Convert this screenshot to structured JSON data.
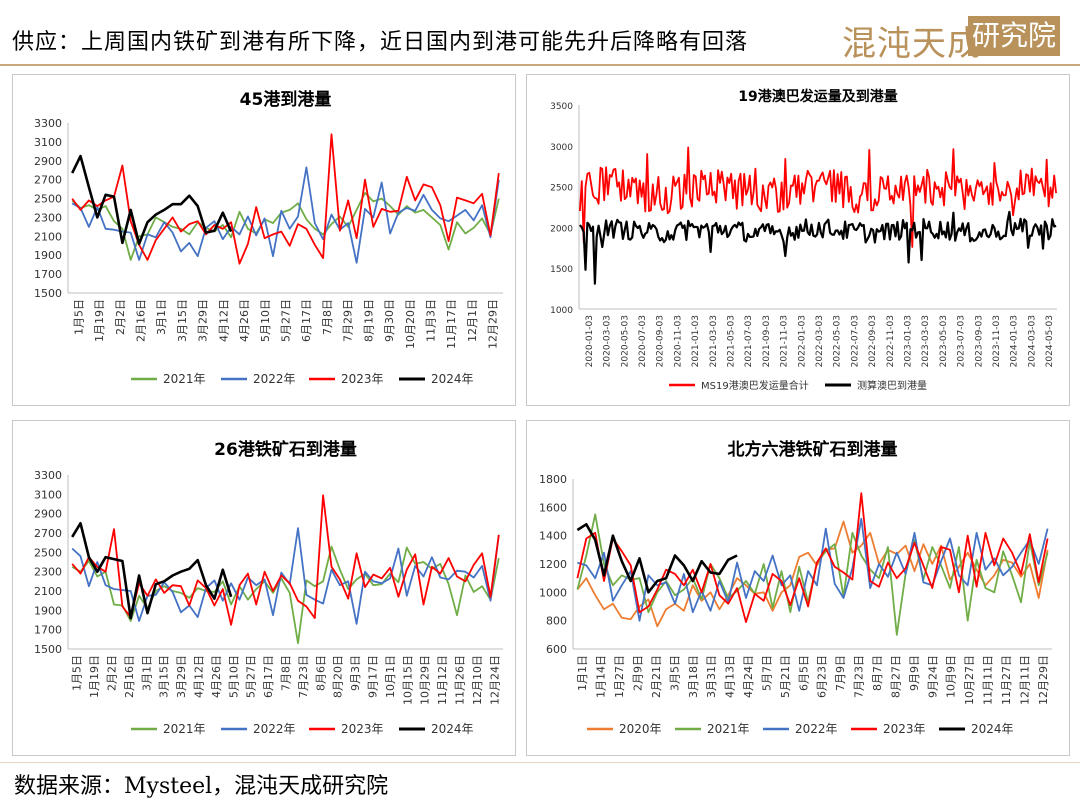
{
  "header": {
    "title": "供应：上周国内铁矿到港有所下降，近日国内到港可能先升后降略有回落",
    "brand": "混沌天成",
    "brand_box": "研究院"
  },
  "footer": {
    "source": "数据来源：Mysteel，混沌天成研究院"
  },
  "colors": {
    "2020": "#ed7d31",
    "2021": "#70ad47",
    "2022": "#4472c4",
    "2023": "#ff0000",
    "2024": "#000000",
    "brand": "#b8925a"
  },
  "chart_data": [
    {
      "type": "line",
      "title": "45港到港量",
      "ylim": [
        1500,
        3300
      ],
      "yticks": [
        "1500",
        "1700",
        "1900",
        "2100",
        "2300",
        "2500",
        "2700",
        "2900",
        "3100",
        "3300"
      ],
      "xticks": [
        "1月5日",
        "1月19日",
        "2月2日",
        "2月16日",
        "3月1日",
        "3月15日",
        "3月29日",
        "4月12日",
        "4月26日",
        "5月10日",
        "5月27日",
        "6月17日",
        "7月8日",
        "7月29日",
        "8月19日",
        "9月30日",
        "10月20日",
        "11月3日",
        "11月17日",
        "12月1日",
        "12月29日"
      ],
      "weeks": 52,
      "legend_position": "bottom",
      "series": [
        {
          "name": "2021年",
          "color": "#70ad47",
          "values": [
            2480,
            2400,
            2430,
            2380,
            2420,
            2260,
            2180,
            1850,
            2100,
            2120,
            2300,
            2250,
            2200,
            2180,
            2120,
            2250,
            2190,
            2150,
            2220,
            2090,
            2360,
            2180,
            2130,
            2280,
            2240,
            2350,
            2380,
            2450,
            2280,
            2180,
            2120,
            2230,
            2310,
            2200,
            2380,
            2560,
            2470,
            2500,
            2420,
            2330,
            2420,
            2350,
            2380,
            2300,
            2220,
            1960,
            2250,
            2130,
            2190,
            2290,
            2120,
            2500
          ]
        },
        {
          "name": "2022年",
          "color": "#4472c4",
          "values": [
            2450,
            2400,
            2200,
            2410,
            2180,
            2170,
            2150,
            2140,
            1850,
            2120,
            2090,
            2250,
            2140,
            1940,
            2030,
            1890,
            2190,
            2260,
            2070,
            2200,
            2120,
            2310,
            2110,
            2290,
            1890,
            2370,
            2180,
            2310,
            2830,
            2240,
            2070,
            2330,
            2170,
            2240,
            1820,
            2390,
            2300,
            2670,
            2130,
            2350,
            2400,
            2370,
            2540,
            2380,
            2290,
            2260,
            2320,
            2380,
            2270,
            2430,
            2090,
            2700
          ]
        },
        {
          "name": "2023年",
          "color": "#ff0000",
          "values": [
            2500,
            2380,
            2480,
            2420,
            2480,
            2520,
            2850,
            2260,
            2010,
            1850,
            2060,
            2180,
            2300,
            2150,
            2230,
            2260,
            2120,
            2220,
            2180,
            2250,
            1810,
            2020,
            2410,
            2080,
            2120,
            2150,
            2000,
            2230,
            2180,
            2010,
            1870,
            3180,
            2160,
            2480,
            2080,
            2700,
            2200,
            2390,
            2360,
            2370,
            2730,
            2480,
            2650,
            2620,
            2430,
            2050,
            2510,
            2480,
            2450,
            2550,
            2110,
            2770
          ]
        },
        {
          "name": "2024年",
          "color": "#000000",
          "values": [
            2770,
            2950,
            2620,
            2300,
            2540,
            2520,
            2030,
            2380,
            2020,
            2250,
            2330,
            2380,
            2440,
            2440,
            2530,
            2420,
            2140,
            2160,
            2350,
            2150
          ]
        }
      ]
    },
    {
      "type": "line",
      "title": "19港澳巴发运量及到港量",
      "ylim": [
        1000,
        3500
      ],
      "yticks": [
        "1000",
        "1500",
        "2000",
        "2500",
        "3000",
        "3500"
      ],
      "xticks": [
        "2020-01-03",
        "2020-03-03",
        "2020-05-03",
        "2020-07-03",
        "2020-09-03",
        "2020-11-03",
        "2021-01-03",
        "2021-03-03",
        "2021-05-03",
        "2021-07-03",
        "2021-09-03",
        "2021-11-03",
        "2022-01-03",
        "2022-03-03",
        "2022-05-03",
        "2022-07-03",
        "2022-09-03",
        "2022-11-03",
        "2023-01-03",
        "2023-03-03",
        "2023-05-03",
        "2023-07-03",
        "2023-09-03",
        "2023-11-03",
        "2024-01-03",
        "2024-03-03",
        "2024-05-03"
      ],
      "legend_position": "bottom",
      "series": [
        {
          "name": "MS19港澳巴发运量合计",
          "color": "#ff0000",
          "pattern": {
            "base": 2450,
            "amp": 230,
            "extremes": [
              [
                0,
                2200
              ],
              [
                2,
                1820
              ],
              [
                30,
                2600
              ],
              [
                36,
                2900
              ],
              [
                58,
                2980
              ],
              [
                94,
                2720
              ],
              [
                110,
                2840
              ],
              [
                155,
                2950
              ],
              [
                178,
                1760
              ],
              [
                200,
                2960
              ],
              [
                222,
                2790
              ],
              [
                232,
                2150
              ],
              [
                250,
                2830
              ],
              [
                255,
                2420
              ]
            ]
          }
        },
        {
          "name": "测算澳巴到港量",
          "color": "#000000",
          "pattern": {
            "base": 1960,
            "amp": 120,
            "extremes": [
              [
                0,
                2030
              ],
              [
                3,
                1480
              ],
              [
                8,
                1310
              ],
              [
                12,
                1760
              ],
              [
                30,
                2020
              ],
              [
                58,
                2080
              ],
              [
                70,
                1700
              ],
              [
                90,
                1920
              ],
              [
                110,
                1650
              ],
              [
                150,
                2050
              ],
              [
                176,
                1570
              ],
              [
                183,
                1600
              ],
              [
                200,
                2180
              ],
              [
                230,
                2190
              ],
              [
                240,
                1750
              ],
              [
                248,
                1740
              ],
              [
                253,
                2100
              ],
              [
                255,
                2020
              ]
            ]
          }
        }
      ]
    },
    {
      "type": "line",
      "title": "26港铁矿石到港量",
      "ylim": [
        1500,
        3300
      ],
      "yticks": [
        "1500",
        "1700",
        "1900",
        "2100",
        "2300",
        "2500",
        "2700",
        "2900",
        "3100",
        "3300"
      ],
      "xticks": [
        "1月5日",
        "1月19日",
        "2月2日",
        "2月16日",
        "3月1日",
        "3月15日",
        "3月29日",
        "4月12日",
        "4月26日",
        "5月10日",
        "5月27日",
        "6月17日",
        "7月8日",
        "7月23日",
        "8月6日",
        "8月20日",
        "9月3日",
        "9月17日",
        "10月1日",
        "10月15日",
        "10月29日",
        "11月12日",
        "11月26日",
        "12月10日",
        "12月24日"
      ],
      "weeks": 52,
      "legend_position": "bottom",
      "series": [
        {
          "name": "2021年",
          "color": "#70ad47",
          "values": [
            2350,
            2300,
            2410,
            2250,
            2300,
            1960,
            1950,
            1790,
            2050,
            1920,
            2100,
            2150,
            2100,
            2080,
            2030,
            2130,
            2100,
            2090,
            2200,
            1960,
            2150,
            2010,
            2120,
            2200,
            2080,
            2230,
            2080,
            1560,
            2210,
            2150,
            2200,
            2560,
            2320,
            2120,
            2220,
            2280,
            2160,
            2170,
            2280,
            2190,
            2550,
            2380,
            2400,
            2330,
            2380,
            2170,
            1850,
            2260,
            2090,
            2150,
            2010,
            2440
          ]
        },
        {
          "name": "2022年",
          "color": "#4472c4",
          "values": [
            2540,
            2460,
            2150,
            2400,
            2160,
            2120,
            2110,
            2100,
            1790,
            2050,
            2060,
            2190,
            2090,
            1880,
            1950,
            1830,
            2130,
            2210,
            2000,
            2180,
            2010,
            2240,
            2160,
            2220,
            1850,
            2290,
            2170,
            2750,
            2060,
            2010,
            1970,
            2320,
            2160,
            2200,
            1760,
            2300,
            2200,
            2180,
            2230,
            2540,
            2050,
            2360,
            2250,
            2450,
            2240,
            2220,
            2310,
            2300,
            2240,
            2360,
            2000,
            2680
          ]
        },
        {
          "name": "2023年",
          "color": "#ff0000",
          "values": [
            2380,
            2280,
            2450,
            2350,
            2300,
            2740,
            1940,
            1830,
            2180,
            2050,
            2220,
            2080,
            2160,
            2150,
            1950,
            2210,
            2130,
            1950,
            2120,
            1750,
            2160,
            2280,
            1960,
            2300,
            2100,
            2260,
            2180,
            2000,
            1940,
            1820,
            3090,
            2350,
            2220,
            2020,
            2490,
            2140,
            2270,
            2230,
            2340,
            2040,
            2320,
            2480,
            1960,
            2350,
            2280,
            2440,
            2250,
            2200,
            2370,
            2490,
            2040,
            2680
          ]
        },
        {
          "name": "2024年",
          "color": "#000000",
          "values": [
            2660,
            2800,
            2450,
            2300,
            2450,
            2430,
            2410,
            1820,
            2260,
            1870,
            2170,
            2200,
            2260,
            2300,
            2330,
            2420,
            2160,
            2020,
            2320,
            2040
          ]
        }
      ]
    },
    {
      "type": "line",
      "title": "北方六港铁矿石到港量",
      "ylim": [
        600,
        1800
      ],
      "yticks": [
        "600",
        "800",
        "1000",
        "1200",
        "1400",
        "1600",
        "1800"
      ],
      "xticks": [
        "1月1日",
        "1月14日",
        "1月27日",
        "2月9日",
        "2月21日",
        "3月5日",
        "3月18日",
        "3月31日",
        "4月13日",
        "4月24日",
        "5月7日",
        "5月21日",
        "6月5日",
        "6月23日",
        "7月9日",
        "7月23日",
        "8月7日",
        "8月27日",
        "9月9日",
        "9月24日",
        "10月9日",
        "10月27日",
        "11月11日",
        "11月27日",
        "12月11日",
        "12月29日"
      ],
      "weeks": 54,
      "legend_position": "bottom",
      "series": [
        {
          "name": "2020年",
          "color": "#ed7d31",
          "values": [
            1020,
            1100,
            980,
            880,
            920,
            820,
            810,
            900,
            950,
            760,
            880,
            920,
            870,
            1050,
            940,
            1000,
            880,
            980,
            1100,
            1050,
            990,
            1000,
            870,
            1000,
            1050,
            1250,
            1280,
            1190,
            1300,
            1310,
            1500,
            1280,
            1330,
            1420,
            1200,
            1300,
            1270,
            1330,
            1150,
            1340,
            1200,
            1330,
            1090,
            1180,
            1280,
            1160,
            1050,
            1120,
            1230,
            1210,
            1110,
            1200,
            960,
            1300
          ]
        },
        {
          "name": "2021年",
          "color": "#70ad47",
          "values": [
            1020,
            1260,
            1550,
            1200,
            1050,
            1120,
            1090,
            1100,
            860,
            1000,
            1080,
            980,
            1020,
            1100,
            950,
            1200,
            1100,
            960,
            1010,
            1080,
            990,
            1200,
            890,
            1150,
            860,
            1180,
            930,
            1210,
            1290,
            1340,
            970,
            1420,
            1260,
            1160,
            1100,
            1320,
            700,
            1130,
            1370,
            1090,
            1320,
            1190,
            1030,
            1320,
            800,
            1230,
            1030,
            1000,
            1290,
            1120,
            930,
            1360,
            1050,
            1280
          ]
        },
        {
          "name": "2022年",
          "color": "#4472c4",
          "values": [
            1210,
            1190,
            1100,
            1280,
            940,
            1050,
            1150,
            800,
            1120,
            1050,
            1070,
            920,
            1130,
            860,
            1010,
            870,
            1080,
            930,
            1210,
            960,
            1150,
            1080,
            1260,
            1050,
            1120,
            870,
            1150,
            1050,
            1450,
            1060,
            960,
            1170,
            1520,
            1030,
            1200,
            1110,
            1280,
            1130,
            1420,
            1070,
            1050,
            1220,
            1380,
            1120,
            1050,
            1420,
            1160,
            1240,
            1120,
            1180,
            1280,
            1370,
            1200,
            1450
          ]
        },
        {
          "name": "2023年",
          "color": "#ff0000",
          "values": [
            1100,
            1380,
            1420,
            1080,
            1380,
            1290,
            1190,
            860,
            900,
            1020,
            1160,
            1130,
            1050,
            1160,
            1000,
            1200,
            980,
            920,
            1030,
            790,
            990,
            940,
            1130,
            1080,
            910,
            1100,
            900,
            1210,
            1310,
            1180,
            1140,
            1090,
            1700,
            1080,
            1040,
            1210,
            1100,
            1170,
            1350,
            1190,
            1030,
            1320,
            1300,
            1000,
            1400,
            1040,
            1420,
            1190,
            1380,
            1280,
            1130,
            1410,
            1070,
            1380
          ]
        },
        {
          "name": "2024年",
          "color": "#000000",
          "values": [
            1440,
            1480,
            1370,
            1120,
            1400,
            1220,
            1080,
            1240,
            1000,
            1080,
            1100,
            1260,
            1190,
            1080,
            1220,
            1140,
            1130,
            1230,
            1260
          ]
        }
      ]
    }
  ]
}
